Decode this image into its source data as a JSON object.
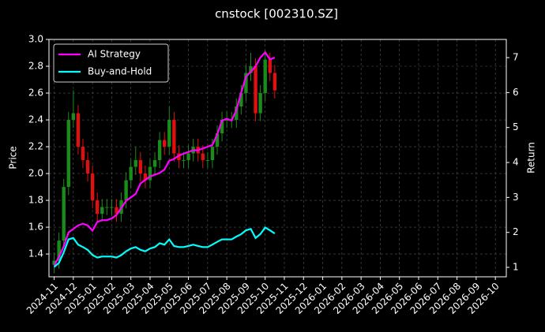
{
  "chart_data": {
    "type": "candlestick",
    "title": "cnstock [002310.SZ]",
    "ylabel": "Price",
    "y2label": "Return",
    "x": [
      0,
      0.25,
      0.5,
      0.75,
      1,
      1.25,
      1.5,
      1.75,
      2,
      2.25,
      2.5,
      2.75,
      3,
      3.25,
      3.5,
      3.75,
      4,
      4.25,
      4.5,
      4.75,
      5,
      5.25,
      5.5,
      5.75,
      6,
      6.25,
      6.5,
      6.75,
      7,
      7.25,
      7.5,
      7.75,
      8,
      8.25,
      8.5,
      8.75,
      9,
      9.25,
      9.5,
      9.75,
      10,
      10.25,
      10.5,
      10.75,
      11,
      11.25,
      11.5
    ],
    "open": [
      1.32,
      1.35,
      1.5,
      1.9,
      2.4,
      2.45,
      2.2,
      2.1,
      2.0,
      1.8,
      1.7,
      1.75,
      1.75,
      1.75,
      1.7,
      1.8,
      1.95,
      2.05,
      2.1,
      2.0,
      1.95,
      2.05,
      2.1,
      2.25,
      2.2,
      2.4,
      2.15,
      2.1,
      2.1,
      2.15,
      2.2,
      2.15,
      2.1,
      2.1,
      2.2,
      2.3,
      2.4,
      2.4,
      2.4,
      2.5,
      2.6,
      2.75,
      2.8,
      2.45,
      2.6,
      2.85,
      2.75
    ],
    "high": [
      1.41,
      1.56,
      1.96,
      2.46,
      2.62,
      2.51,
      2.26,
      2.16,
      2.06,
      1.86,
      1.81,
      1.81,
      1.81,
      1.81,
      1.86,
      2.01,
      2.11,
      2.2,
      2.16,
      2.06,
      2.11,
      2.16,
      2.31,
      2.31,
      2.5,
      2.46,
      2.21,
      2.16,
      2.21,
      2.26,
      2.26,
      2.21,
      2.16,
      2.26,
      2.36,
      2.46,
      2.46,
      2.46,
      2.56,
      2.66,
      2.81,
      2.9,
      2.86,
      2.66,
      2.92,
      2.9,
      2.81
    ],
    "low": [
      1.26,
      1.29,
      1.44,
      1.84,
      2.34,
      2.14,
      2.04,
      1.94,
      1.74,
      1.64,
      1.64,
      1.69,
      1.69,
      1.64,
      1.64,
      1.74,
      1.89,
      1.99,
      1.94,
      1.89,
      1.89,
      1.99,
      2.04,
      2.14,
      2.14,
      2.09,
      2.04,
      2.04,
      2.04,
      2.09,
      2.09,
      2.04,
      2.04,
      2.04,
      2.14,
      2.24,
      2.34,
      2.34,
      2.34,
      2.44,
      2.54,
      2.69,
      2.39,
      2.39,
      2.54,
      2.69,
      2.56
    ],
    "close": [
      1.35,
      1.5,
      1.9,
      2.4,
      2.45,
      2.2,
      2.1,
      2.0,
      1.8,
      1.7,
      1.75,
      1.75,
      1.75,
      1.7,
      1.8,
      1.95,
      2.05,
      2.1,
      2.0,
      1.95,
      2.05,
      2.1,
      2.25,
      2.2,
      2.4,
      2.15,
      2.1,
      2.1,
      2.15,
      2.2,
      2.15,
      2.1,
      2.1,
      2.2,
      2.3,
      2.4,
      2.4,
      2.4,
      2.5,
      2.6,
      2.75,
      2.8,
      2.45,
      2.6,
      2.85,
      2.75,
      2.62
    ],
    "up_color": "#1a8c1a",
    "down_color": "#e01010",
    "series": [
      {
        "name": "AI Strategy",
        "color": "#ff00ff",
        "axis": "y2",
        "values": [
          1.05,
          1.3,
          1.6,
          2.0,
          2.1,
          2.2,
          2.25,
          2.2,
          2.05,
          2.3,
          2.35,
          2.35,
          2.4,
          2.5,
          2.7,
          2.9,
          3.0,
          3.1,
          3.4,
          3.5,
          3.6,
          3.65,
          3.7,
          3.8,
          4.05,
          4.1,
          4.2,
          4.25,
          4.3,
          4.35,
          4.35,
          4.4,
          4.45,
          4.5,
          4.8,
          5.2,
          5.25,
          5.2,
          5.5,
          6.0,
          6.45,
          6.6,
          6.75,
          7.0,
          7.15,
          6.95,
          7.0
        ]
      },
      {
        "name": "Buy-and-Hold",
        "color": "#00ffff",
        "axis": "y2",
        "values": [
          1.01,
          1.13,
          1.43,
          1.8,
          1.84,
          1.65,
          1.58,
          1.5,
          1.35,
          1.28,
          1.31,
          1.31,
          1.31,
          1.28,
          1.35,
          1.46,
          1.54,
          1.58,
          1.5,
          1.46,
          1.54,
          1.58,
          1.69,
          1.65,
          1.8,
          1.61,
          1.58,
          1.58,
          1.61,
          1.65,
          1.61,
          1.58,
          1.58,
          1.65,
          1.73,
          1.8,
          1.8,
          1.8,
          1.88,
          1.95,
          2.06,
          2.1,
          1.84,
          1.95,
          2.14,
          2.06,
          1.97
        ]
      }
    ],
    "xlim": [
      -0.27,
      23.57
    ],
    "xticks": [
      {
        "value": 0,
        "label": "2024-11"
      },
      {
        "value": 1,
        "label": "2024-12"
      },
      {
        "value": 2,
        "label": "2025-01"
      },
      {
        "value": 3,
        "label": "2025-02"
      },
      {
        "value": 4,
        "label": "2025-03"
      },
      {
        "value": 5,
        "label": "2025-04"
      },
      {
        "value": 6,
        "label": "2025-05"
      },
      {
        "value": 7,
        "label": "2025-06"
      },
      {
        "value": 8,
        "label": "2025-07"
      },
      {
        "value": 9,
        "label": "2025-08"
      },
      {
        "value": 10,
        "label": "2025-09"
      },
      {
        "value": 11,
        "label": "2025-10"
      },
      {
        "value": 12,
        "label": "2025-11"
      },
      {
        "value": 13,
        "label": "2025-12"
      },
      {
        "value": 14,
        "label": "2026-01"
      },
      {
        "value": 15,
        "label": "2026-02"
      },
      {
        "value": 16,
        "label": "2026-03"
      },
      {
        "value": 17,
        "label": "2026-04"
      },
      {
        "value": 18,
        "label": "2026-05"
      },
      {
        "value": 19,
        "label": "2026-06"
      },
      {
        "value": 20,
        "label": "2026-07"
      },
      {
        "value": 21,
        "label": "2026-08"
      },
      {
        "value": 22,
        "label": "2026-09"
      },
      {
        "value": 23,
        "label": "2026-10"
      }
    ],
    "ylim": [
      1.23,
      3.0
    ],
    "yticks": [
      1.4,
      1.6,
      1.8,
      {
        "value": 2.0,
        "label": "2.0"
      },
      2.2,
      2.4,
      2.6,
      2.8,
      {
        "value": 3.0,
        "label": "3.0"
      }
    ],
    "y2lim": [
      0.73,
      7.52
    ],
    "y2ticks": [
      1,
      2,
      3,
      4,
      5,
      6,
      7
    ],
    "grid": true,
    "legend": "upper left"
  }
}
